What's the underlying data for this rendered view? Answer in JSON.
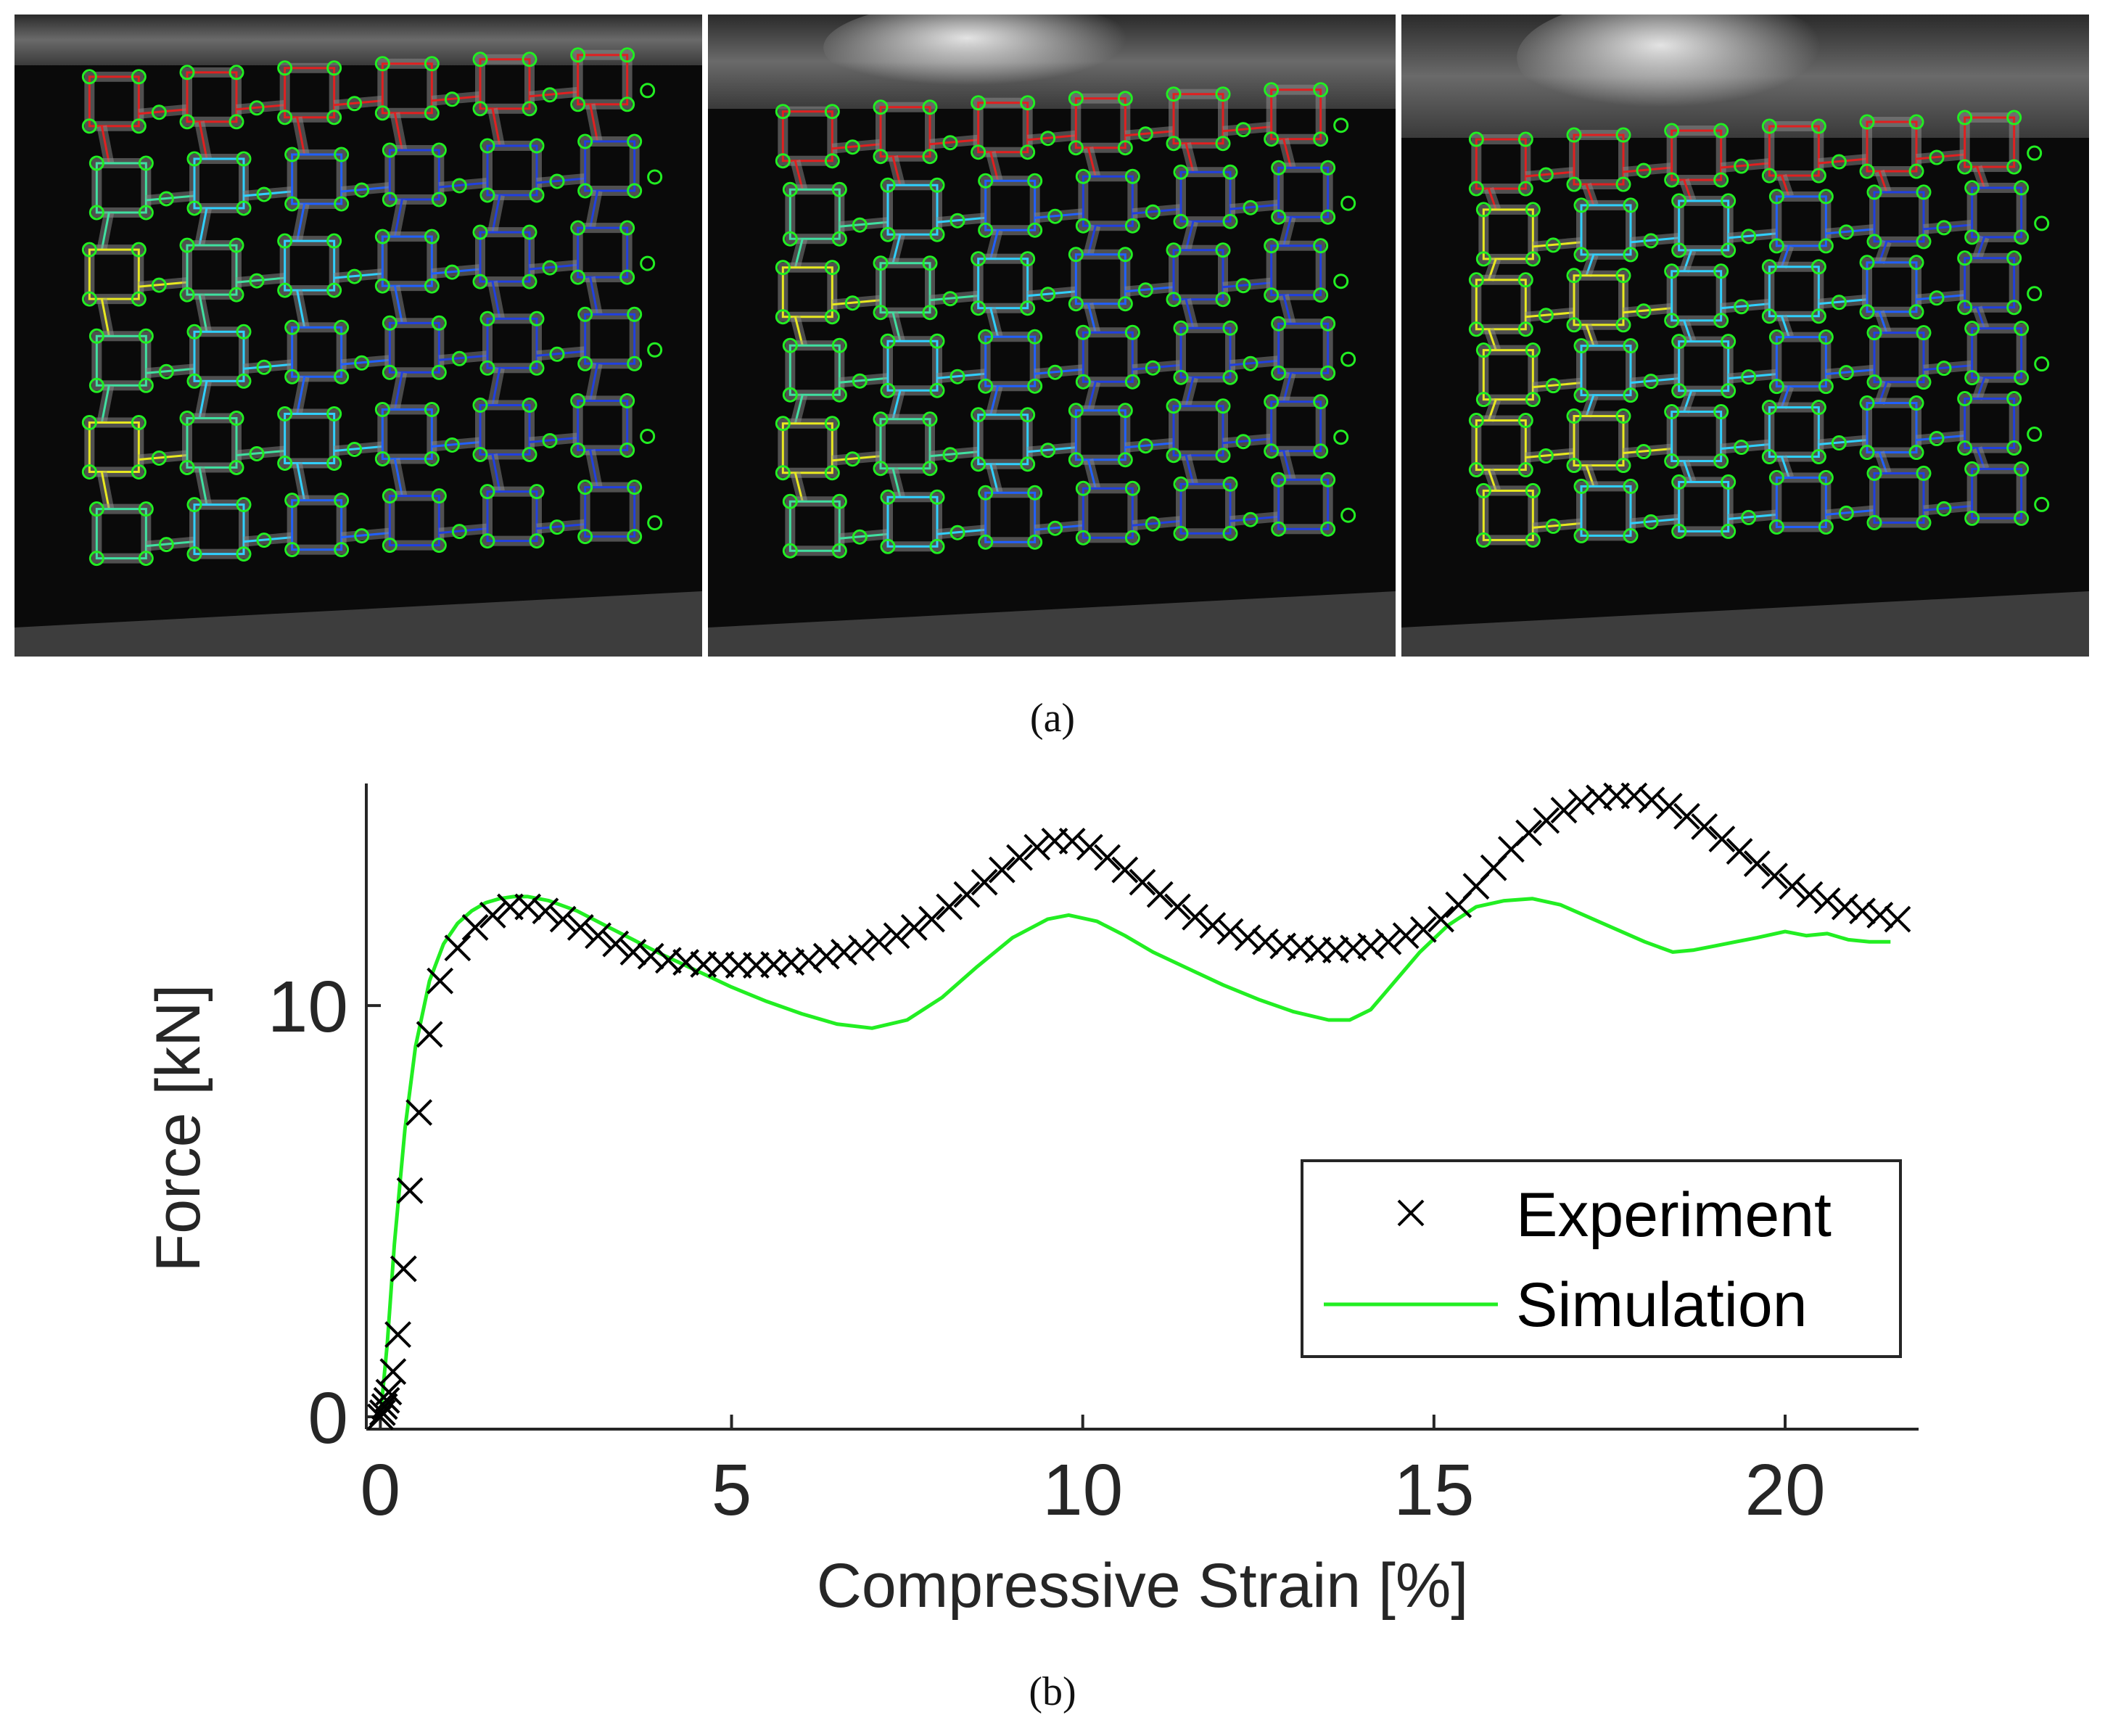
{
  "panel_a": {
    "label": "(a)",
    "frames": [
      {
        "name": "frame-1",
        "top_colors": [
          "#e02020",
          "#e02020",
          "#e02020",
          "#e02020",
          "#e02020",
          "#e02020"
        ],
        "mid_colors": [
          "#e8e820",
          "#40e0a0",
          "#30d0ff",
          "#2060ff",
          "#2040e0",
          "#2040e0"
        ]
      },
      {
        "name": "frame-2",
        "top_colors": [
          "#e02020",
          "#e02020",
          "#e02020",
          "#e02020",
          "#e02020",
          "#e02020"
        ],
        "mid_colors": [
          "#e8e820",
          "#40e0a0",
          "#30d0ff",
          "#2060ff",
          "#2040e0",
          "#2040e0"
        ]
      },
      {
        "name": "frame-3",
        "top_colors": [
          "#e02020",
          "#e02020",
          "#e02020",
          "#e02020",
          "#e02020",
          "#e02020"
        ],
        "mid_colors": [
          "#e8e820",
          "#e8e820",
          "#30d0ff",
          "#30d0ff",
          "#2060ff",
          "#2040e0"
        ]
      }
    ],
    "marker_color": "#22ee22"
  },
  "panel_b": {
    "label": "(b)"
  },
  "chart_data": {
    "type": "line",
    "xlabel": "Compressive Strain [%]",
    "ylabel": "Force [kN]",
    "xlim": [
      -0.2,
      21.9
    ],
    "ylim": [
      -0.3,
      15.4
    ],
    "xticks": [
      0,
      5,
      10,
      15,
      20
    ],
    "yticks": [
      0,
      10
    ],
    "grid": false,
    "legend_position": "bottom-right",
    "series": [
      {
        "name": "Experiment",
        "style": "markers",
        "marker": "x",
        "color": "#000000",
        "x": [
          0,
          0.03,
          0.06,
          0.09,
          0.12,
          0.18,
          0.25,
          0.33,
          0.42,
          0.55,
          0.7,
          0.85,
          1.1,
          1.35,
          1.6,
          1.85,
          2.1,
          2.35,
          2.6,
          2.85,
          3.1,
          3.35,
          3.6,
          3.85,
          4.1,
          4.35,
          4.6,
          4.85,
          5.1,
          5.35,
          5.6,
          5.85,
          6.1,
          6.35,
          6.6,
          6.85,
          7.1,
          7.35,
          7.6,
          7.85,
          8.1,
          8.35,
          8.6,
          8.85,
          9.1,
          9.35,
          9.6,
          9.85,
          10.1,
          10.35,
          10.6,
          10.85,
          11.1,
          11.35,
          11.6,
          11.85,
          12.1,
          12.35,
          12.6,
          12.85,
          13.1,
          13.35,
          13.6,
          13.85,
          14.1,
          14.35,
          14.6,
          14.85,
          15.1,
          15.35,
          15.6,
          15.85,
          16.1,
          16.35,
          16.6,
          16.85,
          17.1,
          17.35,
          17.6,
          17.85,
          18.1,
          18.35,
          18.6,
          18.85,
          19.1,
          19.35,
          19.6,
          19.85,
          20.1,
          20.35,
          20.6,
          20.85,
          21.1,
          21.35,
          21.6
        ],
        "y": [
          0.0,
          0.1,
          0.25,
          0.4,
          0.6,
          1.1,
          2.0,
          3.6,
          5.5,
          7.4,
          9.3,
          10.6,
          11.4,
          11.9,
          12.2,
          12.4,
          12.4,
          12.3,
          12.1,
          11.9,
          11.7,
          11.5,
          11.3,
          11.2,
          11.1,
          11.05,
          11.0,
          11.0,
          10.98,
          10.98,
          11.0,
          11.05,
          11.1,
          11.2,
          11.3,
          11.4,
          11.55,
          11.7,
          11.9,
          12.1,
          12.4,
          12.7,
          13.0,
          13.3,
          13.6,
          13.85,
          14.0,
          14.0,
          13.85,
          13.6,
          13.3,
          13.0,
          12.7,
          12.4,
          12.15,
          11.95,
          11.8,
          11.65,
          11.55,
          11.45,
          11.4,
          11.35,
          11.35,
          11.4,
          11.45,
          11.55,
          11.7,
          11.85,
          12.1,
          12.45,
          12.9,
          13.35,
          13.8,
          14.2,
          14.5,
          14.75,
          14.95,
          15.05,
          15.1,
          15.1,
          15.0,
          14.85,
          14.6,
          14.35,
          14.05,
          13.75,
          13.45,
          13.15,
          12.9,
          12.7,
          12.55,
          12.4,
          12.3,
          12.2,
          12.1
        ]
      },
      {
        "name": "Simulation",
        "style": "line",
        "color": "#22ee22",
        "x": [
          0,
          0.1,
          0.2,
          0.35,
          0.5,
          0.7,
          0.9,
          1.1,
          1.3,
          1.5,
          1.7,
          1.9,
          2.1,
          2.4,
          2.8,
          3.2,
          3.6,
          4.0,
          4.5,
          5.0,
          5.5,
          6.0,
          6.5,
          7.0,
          7.5,
          8.0,
          8.5,
          9.0,
          9.5,
          9.8,
          10.2,
          10.6,
          11.0,
          11.5,
          12.0,
          12.5,
          13.0,
          13.5,
          13.8,
          14.1,
          14.4,
          14.8,
          15.2,
          15.6,
          16.0,
          16.4,
          16.8,
          17.2,
          17.6,
          18.0,
          18.4,
          18.7,
          19.0,
          19.3,
          19.6,
          20.0,
          20.3,
          20.6,
          20.9,
          21.2,
          21.5
        ],
        "y": [
          0.0,
          1.8,
          4.2,
          7.0,
          9.0,
          10.6,
          11.5,
          12.0,
          12.3,
          12.5,
          12.6,
          12.65,
          12.65,
          12.55,
          12.3,
          11.95,
          11.6,
          11.25,
          10.85,
          10.45,
          10.1,
          9.8,
          9.55,
          9.45,
          9.65,
          10.2,
          10.95,
          11.65,
          12.1,
          12.2,
          12.05,
          11.7,
          11.3,
          10.9,
          10.5,
          10.15,
          9.85,
          9.65,
          9.65,
          9.9,
          10.5,
          11.3,
          11.95,
          12.4,
          12.55,
          12.6,
          12.45,
          12.15,
          11.85,
          11.55,
          11.3,
          11.35,
          11.45,
          11.55,
          11.65,
          11.8,
          11.7,
          11.75,
          11.6,
          11.55,
          11.55
        ]
      }
    ]
  }
}
